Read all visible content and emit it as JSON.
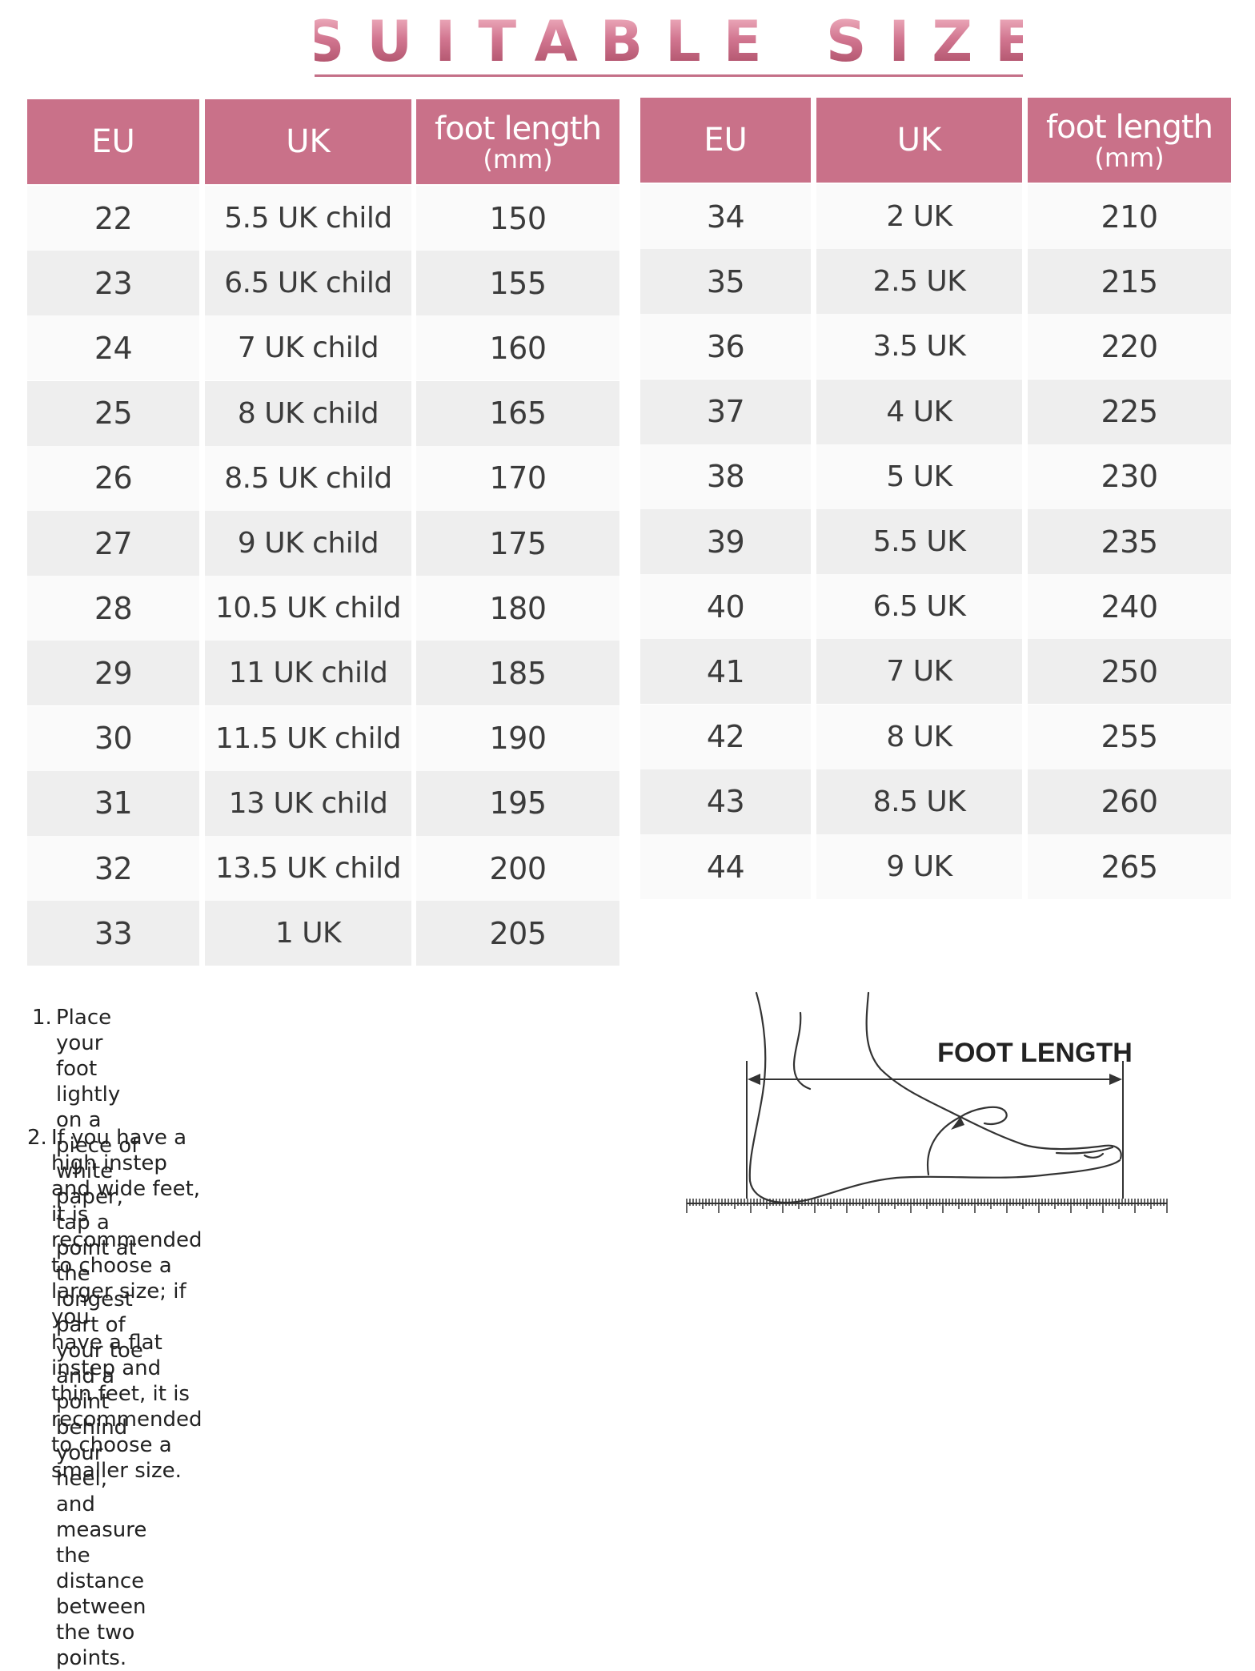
{
  "title": "SUITABLE SIZE",
  "headers": {
    "eu": "EU",
    "uk": "UK",
    "foot_length": "foot length",
    "unit": "(mm)"
  },
  "left_table": [
    {
      "eu": "22",
      "uk": "5.5 UK child",
      "mm": "150"
    },
    {
      "eu": "23",
      "uk": "6.5 UK child",
      "mm": "155"
    },
    {
      "eu": "24",
      "uk": "7 UK child",
      "mm": "160"
    },
    {
      "eu": "25",
      "uk": "8 UK child",
      "mm": "165"
    },
    {
      "eu": "26",
      "uk": "8.5 UK child",
      "mm": "170"
    },
    {
      "eu": "27",
      "uk": "9 UK child",
      "mm": "175"
    },
    {
      "eu": "28",
      "uk": "10.5 UK child",
      "mm": "180"
    },
    {
      "eu": "29",
      "uk": "11 UK child",
      "mm": "185"
    },
    {
      "eu": "30",
      "uk": "11.5 UK child",
      "mm": "190"
    },
    {
      "eu": "31",
      "uk": "13 UK child",
      "mm": "195"
    },
    {
      "eu": "32",
      "uk": "13.5 UK child",
      "mm": "200"
    },
    {
      "eu": "33",
      "uk": "1 UK",
      "mm": "205"
    }
  ],
  "right_table": [
    {
      "eu": "34",
      "uk": "2 UK",
      "mm": "210"
    },
    {
      "eu": "35",
      "uk": "2.5 UK",
      "mm": "215"
    },
    {
      "eu": "36",
      "uk": "3.5 UK",
      "mm": "220"
    },
    {
      "eu": "37",
      "uk": "4 UK",
      "mm": "225"
    },
    {
      "eu": "38",
      "uk": "5 UK",
      "mm": "230"
    },
    {
      "eu": "39",
      "uk": "5.5 UK",
      "mm": "235"
    },
    {
      "eu": "40",
      "uk": "6.5 UK",
      "mm": "240"
    },
    {
      "eu": "41",
      "uk": "7 UK",
      "mm": "250"
    },
    {
      "eu": "42",
      "uk": "8 UK",
      "mm": "255"
    },
    {
      "eu": "43",
      "uk": "8.5 UK",
      "mm": "260"
    },
    {
      "eu": "44",
      "uk": "9 UK",
      "mm": "265"
    }
  ],
  "notes": [
    {
      "number": "1.",
      "text": "Place your foot lightly on a piece of white paper, tap a\npoint at the longest part of your toe and a point behind\nyour heel, and measure the distance between the two\npoints."
    },
    {
      "number": "2.",
      "text": "If you have a high instep and wide feet, it is\nrecommended to choose a larger size; if you\nhave a flat instep and thin feet, it is recommended\nto choose a smaller size."
    }
  ],
  "diagram": {
    "label": "FOOT LENGTH"
  },
  "colors": {
    "header_bg": "#c97189",
    "title_accent": "#c4667d",
    "row_light": "#fafafa",
    "row_dark": "#eeeeee"
  }
}
